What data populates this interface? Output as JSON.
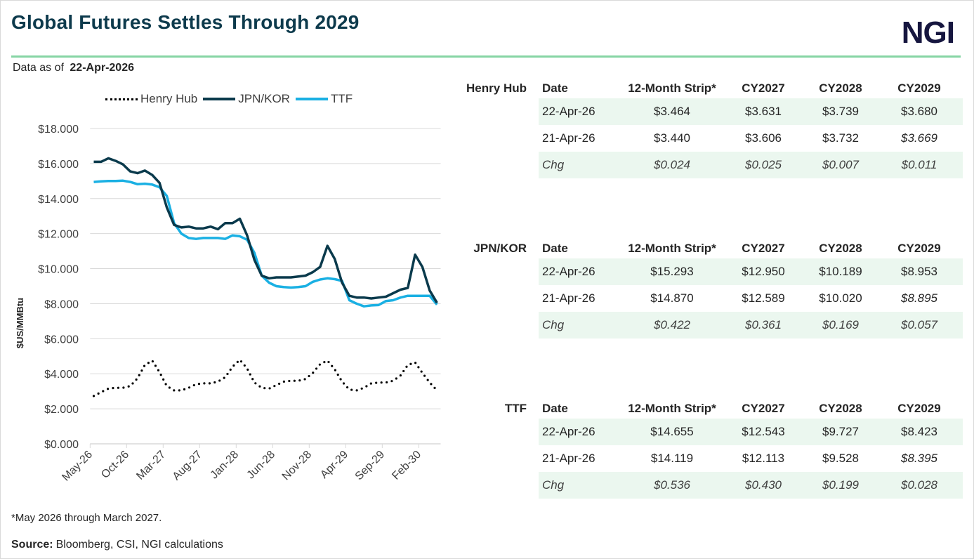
{
  "header": {
    "title": "Global Futures Settles Through 2029",
    "logo": "NGI",
    "as_of_label": "Data as of",
    "as_of_date": "22-Apr-2026",
    "accent_color": "#86d5a4"
  },
  "chart_data": {
    "type": "line",
    "title": "",
    "xlabel": "",
    "ylabel": "$US/MMBtu",
    "ylim": [
      0,
      18
    ],
    "y_ticks": [
      0,
      2,
      4,
      6,
      8,
      10,
      12,
      14,
      16,
      18
    ],
    "y_tick_labels": [
      "$0.000",
      "$2.000",
      "$4.000",
      "$6.000",
      "$8.000",
      "$10.000",
      "$12.000",
      "$14.000",
      "$16.000",
      "$18.000"
    ],
    "grid": true,
    "legend_position": "top",
    "x": [
      "May-26",
      "Jun-26",
      "Jul-26",
      "Aug-26",
      "Sep-26",
      "Oct-26",
      "Nov-26",
      "Dec-26",
      "Jan-27",
      "Feb-27",
      "Mar-27",
      "Apr-27",
      "May-27",
      "Jun-27",
      "Jul-27",
      "Aug-27",
      "Sep-27",
      "Oct-27",
      "Nov-27",
      "Dec-27",
      "Jan-28",
      "Feb-28",
      "Mar-28",
      "Apr-28",
      "May-28",
      "Jun-28",
      "Jul-28",
      "Aug-28",
      "Sep-28",
      "Oct-28",
      "Nov-28",
      "Dec-28",
      "Jan-29",
      "Feb-29",
      "Mar-29",
      "Apr-29",
      "May-29",
      "Jun-29",
      "Jul-29",
      "Aug-29",
      "Sep-29",
      "Oct-29",
      "Nov-29",
      "Dec-29",
      "Jan-30",
      "Feb-30",
      "Mar-30",
      "Apr-30"
    ],
    "x_tick_labels": [
      "May-26",
      "Oct-26",
      "Mar-27",
      "Aug-27",
      "Jan-28",
      "Jun-28",
      "Nov-28",
      "Apr-29",
      "Sep-29",
      "Feb-30"
    ],
    "series": [
      {
        "name": "Henry Hub",
        "color": "#000000",
        "style": "dotted",
        "values": [
          2.73,
          2.95,
          3.15,
          3.2,
          3.2,
          3.3,
          3.75,
          4.5,
          4.75,
          4.1,
          3.3,
          3.05,
          3.05,
          3.2,
          3.4,
          3.45,
          3.45,
          3.55,
          3.8,
          4.4,
          4.8,
          4.3,
          3.5,
          3.2,
          3.15,
          3.35,
          3.55,
          3.6,
          3.6,
          3.7,
          4.05,
          4.55,
          4.75,
          4.25,
          3.55,
          3.1,
          3.05,
          3.2,
          3.45,
          3.5,
          3.5,
          3.6,
          3.9,
          4.5,
          4.65,
          4.05,
          3.5,
          3.05
        ]
      },
      {
        "name": "JPN/KOR",
        "color": "#0a3a4c",
        "style": "solid",
        "values": [
          16.1,
          16.1,
          16.3,
          16.15,
          15.95,
          15.55,
          15.45,
          15.6,
          15.35,
          14.9,
          13.5,
          12.5,
          12.35,
          12.4,
          12.3,
          12.3,
          12.4,
          12.25,
          12.6,
          12.6,
          12.85,
          11.9,
          10.5,
          9.6,
          9.45,
          9.5,
          9.5,
          9.5,
          9.55,
          9.6,
          9.8,
          10.1,
          11.3,
          10.55,
          9.2,
          8.45,
          8.35,
          8.35,
          8.3,
          8.35,
          8.4,
          8.6,
          8.8,
          8.9,
          10.8,
          10.1,
          8.75,
          8.05
        ]
      },
      {
        "name": "TTF",
        "color": "#1ab0e3",
        "style": "solid",
        "values": [
          14.95,
          14.98,
          15.0,
          15.0,
          15.02,
          14.95,
          14.82,
          14.85,
          14.8,
          14.65,
          14.15,
          12.6,
          12.0,
          11.75,
          11.7,
          11.75,
          11.75,
          11.75,
          11.7,
          11.9,
          11.85,
          11.65,
          10.9,
          9.6,
          9.2,
          9.0,
          8.95,
          8.92,
          8.95,
          9.0,
          9.25,
          9.38,
          9.45,
          9.4,
          9.3,
          8.2,
          8.0,
          7.85,
          7.9,
          7.92,
          8.15,
          8.2,
          8.35,
          8.45,
          8.45,
          8.45,
          8.45,
          7.95
        ]
      }
    ]
  },
  "tables": [
    {
      "name": "Henry Hub",
      "columns": [
        "Date",
        "12-Month Strip*",
        "CY2027",
        "CY2028",
        "CY2029"
      ],
      "rows": [
        [
          "22-Apr-26",
          "$3.464",
          "$3.631",
          "$3.739",
          "$3.680"
        ],
        [
          "21-Apr-26",
          "$3.440",
          "$3.606",
          "$3.732",
          "$3.669"
        ],
        [
          "Chg",
          "$0.024",
          "$0.025",
          "$0.007",
          "$0.011"
        ]
      ]
    },
    {
      "name": "JPN/KOR",
      "columns": [
        "Date",
        "12-Month Strip*",
        "CY2027",
        "CY2028",
        "CY2029"
      ],
      "rows": [
        [
          "22-Apr-26",
          "$15.293",
          "$12.950",
          "$10.189",
          "$8.953"
        ],
        [
          "21-Apr-26",
          "$14.870",
          "$12.589",
          "$10.020",
          "$8.895"
        ],
        [
          "Chg",
          "$0.422",
          "$0.361",
          "$0.169",
          "$0.057"
        ]
      ]
    },
    {
      "name": "TTF",
      "columns": [
        "Date",
        "12-Month Strip*",
        "CY2027",
        "CY2028",
        "CY2029"
      ],
      "rows": [
        [
          "22-Apr-26",
          "$14.655",
          "$12.543",
          "$9.727",
          "$8.423"
        ],
        [
          "21-Apr-26",
          "$14.119",
          "$12.113",
          "$9.528",
          "$8.395"
        ],
        [
          "Chg",
          "$0.536",
          "$0.430",
          "$0.199",
          "$0.028"
        ]
      ]
    }
  ],
  "footer": {
    "footnote": "*May 2026 through March 2027.",
    "source_label": "Source:",
    "source_text": "Bloomberg, CSI, NGI calculations"
  }
}
